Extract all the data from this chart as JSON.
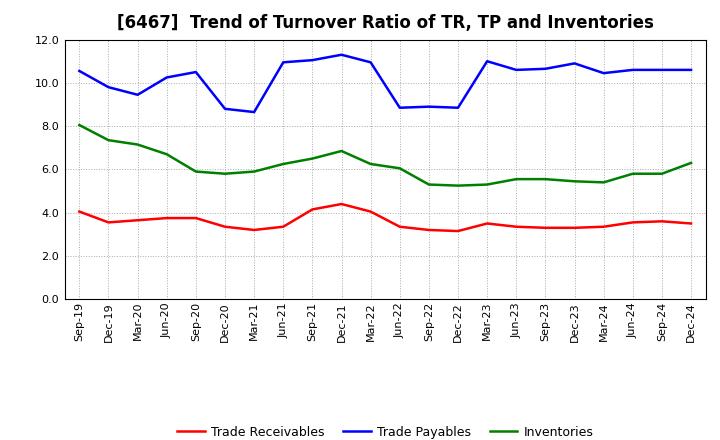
{
  "title": "[6467]  Trend of Turnover Ratio of TR, TP and Inventories",
  "x_labels": [
    "Sep-19",
    "Dec-19",
    "Mar-20",
    "Jun-20",
    "Sep-20",
    "Dec-20",
    "Mar-21",
    "Jun-21",
    "Sep-21",
    "Dec-21",
    "Mar-22",
    "Jun-22",
    "Sep-22",
    "Dec-22",
    "Mar-23",
    "Jun-23",
    "Sep-23",
    "Dec-23",
    "Mar-24",
    "Jun-24",
    "Sep-24",
    "Dec-24"
  ],
  "trade_receivables": [
    4.05,
    3.55,
    3.65,
    3.75,
    3.75,
    3.35,
    3.2,
    3.35,
    4.15,
    4.4,
    4.05,
    3.35,
    3.2,
    3.15,
    3.5,
    3.35,
    3.3,
    3.3,
    3.35,
    3.55,
    3.6,
    3.5
  ],
  "trade_payables": [
    10.55,
    9.8,
    9.45,
    10.25,
    10.5,
    8.8,
    8.65,
    10.95,
    11.05,
    11.3,
    10.95,
    8.85,
    8.9,
    8.85,
    11.0,
    10.6,
    10.65,
    10.9,
    10.45,
    10.6,
    10.6,
    10.6
  ],
  "inventories": [
    8.05,
    7.35,
    7.15,
    6.7,
    5.9,
    5.8,
    5.9,
    6.25,
    6.5,
    6.85,
    6.25,
    6.05,
    5.3,
    5.25,
    5.3,
    5.55,
    5.55,
    5.45,
    5.4,
    5.8,
    5.8,
    6.3
  ],
  "tr_color": "#ff0000",
  "tp_color": "#0000ff",
  "inv_color": "#008000",
  "tr_label": "Trade Receivables",
  "tp_label": "Trade Payables",
  "inv_label": "Inventories",
  "ylim": [
    0.0,
    12.0
  ],
  "yticks": [
    0.0,
    2.0,
    4.0,
    6.0,
    8.0,
    10.0,
    12.0
  ],
  "background_color": "#ffffff",
  "grid_color": "#aaaaaa",
  "title_fontsize": 12,
  "legend_fontsize": 9,
  "tick_fontsize": 8,
  "line_width": 1.8
}
